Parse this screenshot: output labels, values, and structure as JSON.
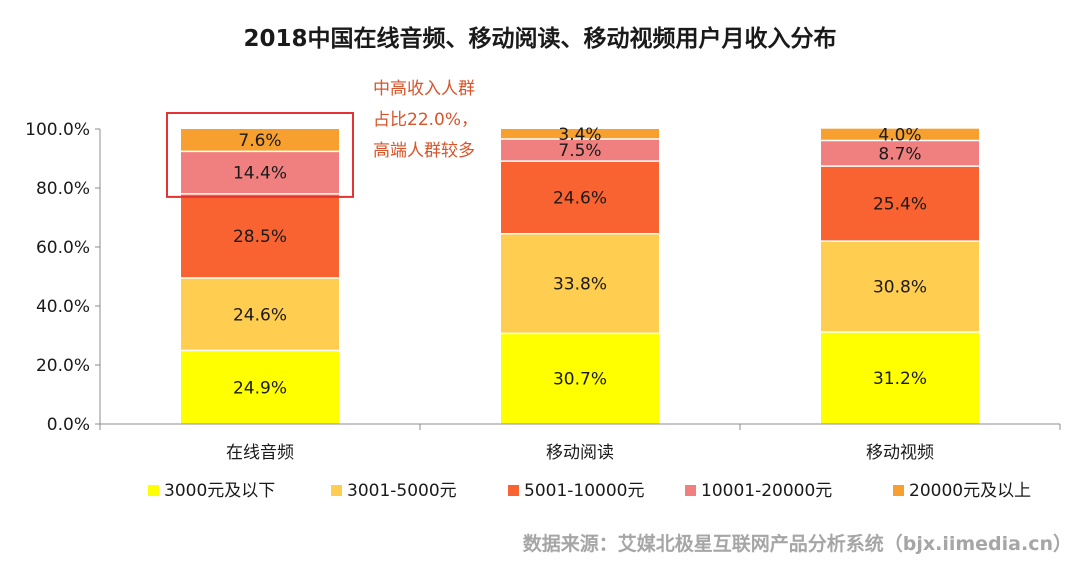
{
  "chart_data": {
    "type": "bar",
    "stacked": true,
    "title": "2018中国在线音频、移动阅读、移动视频用户月收入分布",
    "categories": [
      "在线音频",
      "移动阅读",
      "移动视频"
    ],
    "ylim": [
      0,
      100
    ],
    "yticks": [
      "0.0%",
      "20.0%",
      "40.0%",
      "60.0%",
      "80.0%",
      "100.0%"
    ],
    "legend_position": "bottom",
    "series": [
      {
        "name": "3000元及以下",
        "color": "#ffff00",
        "values": [
          24.9,
          30.7,
          31.2
        ],
        "labels": [
          "24.9%",
          "30.7%",
          "31.2%"
        ]
      },
      {
        "name": "3001-5000元",
        "color": "#ffcd4f",
        "values": [
          24.6,
          33.8,
          30.8
        ],
        "labels": [
          "24.6%",
          "33.8%",
          "30.8%"
        ]
      },
      {
        "name": "5001-10000元",
        "color": "#f96332",
        "values": [
          28.5,
          24.6,
          25.4
        ],
        "labels": [
          "28.5%",
          "24.6%",
          "25.4%"
        ]
      },
      {
        "name": "10001-20000元",
        "color": "#f08080",
        "values": [
          14.4,
          7.5,
          8.7
        ],
        "labels": [
          "14.4%",
          "7.5%",
          "8.7%"
        ]
      },
      {
        "name": "20000元及以上",
        "color": "#f7a030",
        "values": [
          7.6,
          3.4,
          4.0
        ],
        "labels": [
          "7.6%",
          "3.4%",
          "4.0%"
        ]
      }
    ],
    "annotation": {
      "lines": [
        "中高收入人群",
        "占比22.0%，",
        "高端人群较多"
      ],
      "color": "#d9542b",
      "highlight_color": "#e53333"
    },
    "source": "数据来源：艾媒北极星互联网产品分析系统（bjx.iimedia.cn）"
  }
}
